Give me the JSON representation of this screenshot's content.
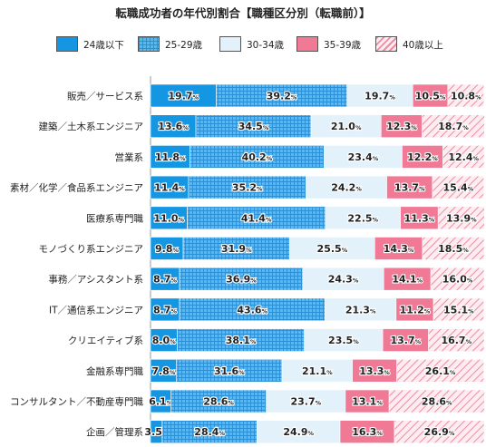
{
  "chart_data": {
    "type": "bar",
    "stacked": true,
    "orientation": "horizontal",
    "title": "転職成功者の年代別割合【職種区分別（転職前）】",
    "legend_position": "top",
    "series": [
      {
        "name": "24歳以下",
        "color": "#1596e3",
        "pattern": "solid",
        "values": [
          19.7,
          13.6,
          11.8,
          11.4,
          11.0,
          9.8,
          8.7,
          8.7,
          8.0,
          7.8,
          6.1,
          3.5
        ]
      },
      {
        "name": "25-29歳",
        "color": "#4fb3ea",
        "pattern": "grid",
        "values": [
          39.2,
          34.5,
          40.2,
          35.2,
          41.4,
          31.9,
          36.9,
          43.6,
          38.1,
          31.6,
          28.6,
          28.4
        ]
      },
      {
        "name": "30-34歳",
        "color": "#e3f1fb",
        "pattern": "solid",
        "values": [
          19.7,
          21.0,
          23.4,
          24.2,
          22.5,
          25.5,
          24.3,
          21.3,
          23.5,
          21.1,
          23.7,
          24.9
        ]
      },
      {
        "name": "35-39歳",
        "color": "#f07a96",
        "pattern": "solid",
        "values": [
          10.5,
          12.3,
          12.2,
          13.7,
          11.3,
          14.3,
          14.1,
          11.2,
          13.7,
          13.3,
          13.1,
          16.3
        ]
      },
      {
        "name": "40歳以上",
        "color": "#fde4ea",
        "pattern": "diagonal",
        "values": [
          10.8,
          18.7,
          12.4,
          15.4,
          13.9,
          18.5,
          16.0,
          15.1,
          16.7,
          26.1,
          28.6,
          26.9
        ]
      }
    ],
    "categories": [
      "販売／サービス系",
      "建築／土木系エンジニア",
      "営業系",
      "素材／化学／食品系エンジニア",
      "医療系専門職",
      "モノづくり系エンジニア",
      "事務／アシスタント系",
      "IT／通信系エンジニア",
      "クリエイティブ系",
      "金融系専門職",
      "コンサルタント／不動産専門職",
      "企画／管理系"
    ],
    "value_unit": "%",
    "xlim": [
      0,
      100
    ]
  }
}
